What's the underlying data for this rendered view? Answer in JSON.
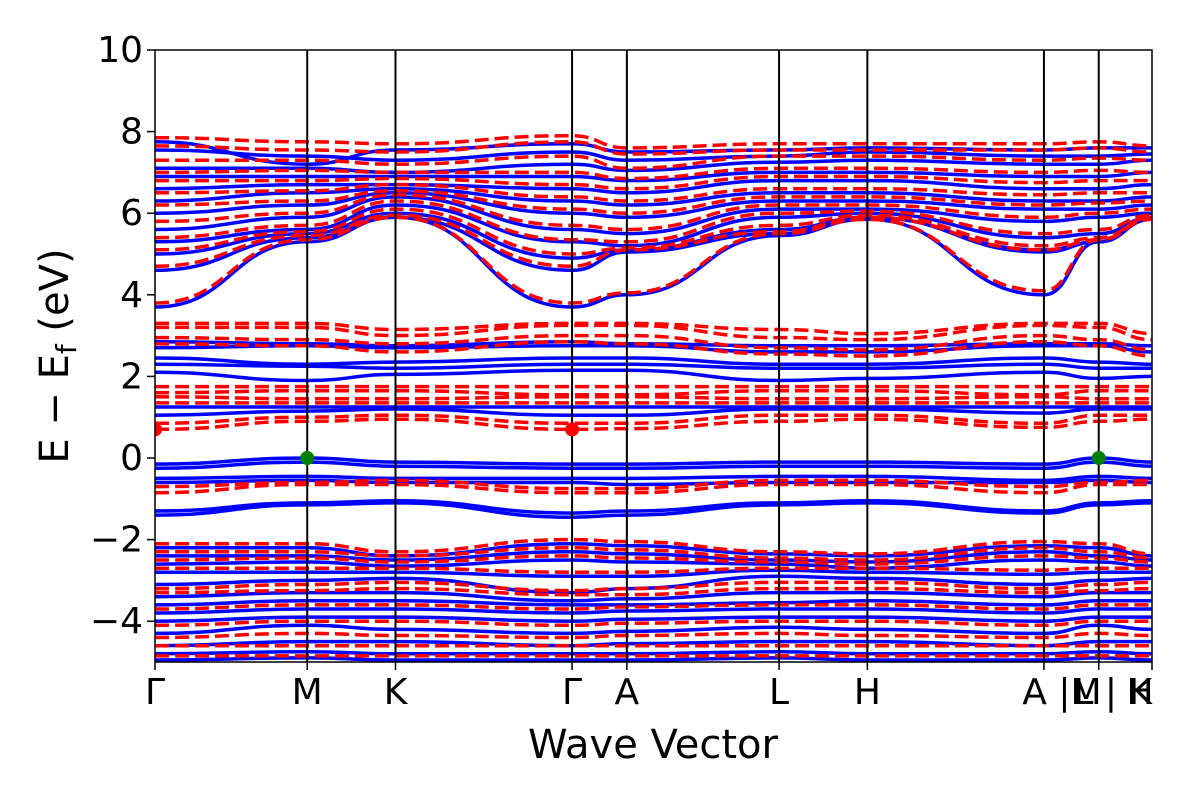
{
  "chart_data": {
    "type": "line",
    "xlabel": "Wave Vector",
    "ylabel": "E − E",
    "ylabel_sub": "f",
    "ylabel_unit": " (eV)",
    "ylim": [
      -5,
      10
    ],
    "yticks": [
      10,
      8,
      6,
      4,
      2,
      0,
      -2,
      -4
    ],
    "ytick_labels": [
      "10",
      "8",
      "6",
      "4",
      "2",
      "0",
      "−2",
      "−4"
    ],
    "xlim": [
      0,
      6.55
    ],
    "kpoints": [
      {
        "label": "Γ",
        "x": 0.0
      },
      {
        "label": "M",
        "x": 1.0
      },
      {
        "label": "K",
        "x": 1.58
      },
      {
        "label": "Γ",
        "x": 2.74
      },
      {
        "label": "A",
        "x": 3.1
      },
      {
        "label": "L",
        "x": 4.1
      },
      {
        "label": "H",
        "x": 4.68
      },
      {
        "label": "A |M",
        "x": 5.84
      },
      {
        "label": "L | K",
        "x": 6.2
      },
      {
        "label": "H",
        "x": 6.55
      }
    ],
    "colors": {
      "spin_up": "#0000ff",
      "spin_down": "#ff0000",
      "vbm": "#008000",
      "cbm": "#ff0000"
    },
    "series": [
      {
        "style": "solid",
        "color": "#0000ff",
        "bands": [
          [
            7.75,
            7.2,
            7.55,
            7.7,
            7.5,
            7.55,
            7.6,
            7.55,
            7.6,
            7.6
          ],
          [
            7.55,
            7.4,
            7.3,
            7.5,
            7.3,
            7.4,
            7.5,
            7.4,
            7.4,
            7.45
          ],
          [
            7.1,
            7.1,
            7.0,
            7.2,
            7.05,
            7.25,
            7.3,
            7.2,
            7.2,
            7.3
          ],
          [
            6.9,
            6.9,
            6.9,
            6.9,
            6.8,
            7.0,
            7.0,
            6.9,
            6.9,
            7.0
          ],
          [
            6.6,
            6.7,
            6.7,
            6.6,
            6.5,
            6.8,
            6.8,
            6.6,
            6.6,
            6.7
          ],
          [
            6.3,
            6.5,
            6.6,
            6.3,
            6.2,
            6.5,
            6.5,
            6.3,
            6.3,
            6.4
          ],
          [
            6.0,
            6.2,
            6.5,
            6.0,
            5.9,
            6.3,
            6.3,
            6.1,
            6.1,
            6.2
          ],
          [
            5.6,
            5.9,
            6.4,
            5.6,
            5.5,
            6.1,
            6.1,
            5.8,
            5.9,
            6.0
          ],
          [
            5.3,
            5.6,
            6.2,
            5.3,
            5.2,
            5.9,
            6.0,
            5.4,
            5.5,
            5.9
          ],
          [
            5.0,
            5.5,
            6.0,
            4.9,
            5.1,
            5.6,
            5.9,
            5.1,
            5.3,
            5.9
          ],
          [
            4.6,
            5.4,
            5.9,
            4.6,
            5.05,
            5.5,
            5.9,
            5.05,
            5.3,
            5.9
          ],
          [
            3.7,
            5.3,
            5.9,
            3.7,
            4.0,
            5.45,
            5.85,
            4.0,
            5.3,
            5.85
          ],
          [
            2.85,
            2.8,
            2.75,
            2.85,
            2.8,
            2.75,
            2.75,
            2.8,
            2.8,
            2.75
          ],
          [
            2.7,
            2.75,
            2.7,
            2.75,
            2.75,
            2.6,
            2.6,
            2.75,
            2.75,
            2.6
          ],
          [
            2.45,
            2.3,
            2.35,
            2.45,
            2.45,
            2.3,
            2.3,
            2.45,
            2.35,
            2.3
          ],
          [
            2.3,
            2.25,
            2.2,
            2.3,
            2.3,
            2.2,
            2.2,
            2.3,
            2.2,
            2.2
          ],
          [
            2.1,
            1.9,
            2.05,
            2.15,
            2.15,
            1.9,
            1.95,
            2.1,
            1.95,
            2.0
          ],
          [
            1.25,
            1.25,
            1.25,
            1.25,
            1.25,
            1.25,
            1.25,
            1.25,
            1.25,
            1.25
          ],
          [
            1.05,
            1.15,
            1.2,
            1.05,
            1.05,
            1.2,
            1.2,
            1.1,
            1.2,
            1.2
          ],
          [
            -0.15,
            0.0,
            -0.1,
            -0.15,
            -0.15,
            -0.1,
            -0.1,
            -0.15,
            0.0,
            -0.1
          ],
          [
            -0.25,
            -0.1,
            -0.2,
            -0.25,
            -0.25,
            -0.2,
            -0.2,
            -0.25,
            -0.1,
            -0.2
          ],
          [
            -0.5,
            -0.45,
            -0.5,
            -0.5,
            -0.5,
            -0.45,
            -0.45,
            -0.55,
            -0.45,
            -0.5
          ],
          [
            -0.6,
            -0.55,
            -0.6,
            -0.6,
            -0.65,
            -0.6,
            -0.6,
            -0.6,
            -0.55,
            -0.6
          ],
          [
            -1.3,
            -1.1,
            -1.05,
            -1.35,
            -1.3,
            -1.1,
            -1.05,
            -1.3,
            -1.1,
            -1.05
          ],
          [
            -1.4,
            -1.15,
            -1.1,
            -1.45,
            -1.4,
            -1.15,
            -1.1,
            -1.35,
            -1.15,
            -1.1
          ],
          [
            -2.2,
            -2.2,
            -2.4,
            -2.1,
            -2.15,
            -2.35,
            -2.4,
            -2.15,
            -2.2,
            -2.4
          ],
          [
            -2.4,
            -2.4,
            -2.5,
            -2.3,
            -2.35,
            -2.5,
            -2.55,
            -2.3,
            -2.4,
            -2.5
          ],
          [
            -2.6,
            -2.55,
            -2.65,
            -2.5,
            -2.55,
            -2.6,
            -2.7,
            -2.5,
            -2.55,
            -2.65
          ],
          [
            -2.8,
            -2.8,
            -2.8,
            -2.9,
            -2.9,
            -2.75,
            -2.8,
            -2.85,
            -2.8,
            -2.8
          ],
          [
            -3.1,
            -3.0,
            -2.95,
            -3.3,
            -3.2,
            -2.9,
            -2.95,
            -3.1,
            -3.0,
            -2.95
          ],
          [
            -3.4,
            -3.3,
            -3.3,
            -3.5,
            -3.45,
            -3.3,
            -3.3,
            -3.4,
            -3.3,
            -3.3
          ],
          [
            -3.6,
            -3.5,
            -3.5,
            -3.6,
            -3.6,
            -3.55,
            -3.5,
            -3.6,
            -3.5,
            -3.5
          ],
          [
            -3.8,
            -3.7,
            -3.7,
            -3.8,
            -3.75,
            -3.7,
            -3.7,
            -3.8,
            -3.7,
            -3.7
          ],
          [
            -4.0,
            -3.9,
            -3.9,
            -4.0,
            -3.95,
            -3.9,
            -3.9,
            -4.0,
            -3.9,
            -3.9
          ],
          [
            -4.3,
            -4.1,
            -4.2,
            -4.3,
            -4.25,
            -4.15,
            -4.2,
            -4.3,
            -4.1,
            -4.2
          ],
          [
            -4.6,
            -4.5,
            -4.5,
            -4.6,
            -4.55,
            -4.5,
            -4.5,
            -4.6,
            -4.5,
            -4.5
          ],
          [
            -4.8,
            -4.75,
            -4.8,
            -4.8,
            -4.8,
            -4.75,
            -4.8,
            -4.8,
            -4.75,
            -4.8
          ],
          [
            -4.95,
            -4.9,
            -4.95,
            -4.95,
            -4.95,
            -4.9,
            -4.95,
            -4.95,
            -4.9,
            -4.95
          ]
        ]
      },
      {
        "style": "dashed",
        "color": "#ff0000",
        "bands": [
          [
            7.85,
            7.75,
            7.7,
            7.9,
            7.6,
            7.7,
            7.7,
            7.7,
            7.75,
            7.65
          ],
          [
            7.65,
            7.55,
            7.5,
            7.75,
            7.45,
            7.55,
            7.55,
            7.55,
            7.6,
            7.5
          ],
          [
            7.3,
            7.3,
            7.2,
            7.4,
            7.1,
            7.4,
            7.4,
            7.3,
            7.35,
            7.3
          ],
          [
            7.0,
            7.05,
            7.0,
            7.0,
            6.85,
            7.1,
            7.1,
            7.0,
            7.05,
            7.0
          ],
          [
            6.8,
            6.8,
            6.85,
            6.7,
            6.6,
            6.9,
            6.9,
            6.75,
            6.8,
            6.8
          ],
          [
            6.5,
            6.55,
            6.7,
            6.4,
            6.3,
            6.6,
            6.6,
            6.45,
            6.5,
            6.5
          ],
          [
            6.2,
            6.3,
            6.55,
            6.1,
            6.0,
            6.4,
            6.4,
            6.2,
            6.25,
            6.3
          ],
          [
            5.8,
            6.0,
            6.45,
            5.7,
            5.6,
            6.2,
            6.2,
            5.9,
            6.0,
            6.1
          ],
          [
            5.4,
            5.7,
            6.3,
            5.35,
            5.3,
            6.0,
            6.05,
            5.5,
            5.6,
            5.95
          ],
          [
            5.1,
            5.55,
            6.1,
            5.0,
            5.15,
            5.7,
            5.95,
            5.2,
            5.4,
            5.9
          ],
          [
            4.7,
            5.45,
            5.95,
            4.7,
            5.1,
            5.55,
            5.9,
            5.1,
            5.35,
            5.9
          ],
          [
            3.8,
            5.35,
            5.9,
            3.8,
            4.05,
            5.5,
            5.85,
            4.1,
            5.35,
            5.85
          ],
          [
            3.3,
            3.3,
            3.15,
            3.3,
            3.3,
            3.15,
            3.05,
            3.3,
            3.3,
            3.05
          ],
          [
            3.2,
            3.2,
            3.0,
            3.25,
            3.25,
            2.95,
            2.9,
            3.25,
            3.2,
            2.9
          ],
          [
            2.95,
            2.9,
            2.8,
            3.0,
            3.0,
            2.7,
            2.65,
            3.0,
            2.9,
            2.65
          ],
          [
            2.8,
            2.75,
            2.6,
            2.85,
            2.8,
            2.55,
            2.5,
            2.85,
            2.75,
            2.5
          ],
          [
            1.75,
            1.75,
            1.75,
            1.75,
            1.75,
            1.75,
            1.75,
            1.75,
            1.75,
            1.75
          ],
          [
            1.6,
            1.65,
            1.65,
            1.55,
            1.55,
            1.65,
            1.65,
            1.55,
            1.65,
            1.65
          ],
          [
            1.5,
            1.45,
            1.45,
            1.5,
            1.5,
            1.45,
            1.45,
            1.5,
            1.45,
            1.45
          ],
          [
            1.35,
            1.35,
            1.35,
            1.35,
            1.35,
            1.35,
            1.35,
            1.35,
            1.35,
            1.35
          ],
          [
            0.85,
            1.0,
            1.05,
            0.85,
            0.85,
            1.05,
            1.05,
            0.85,
            1.05,
            1.05
          ],
          [
            0.7,
            0.9,
            0.95,
            0.7,
            0.72,
            0.9,
            0.95,
            0.75,
            0.9,
            0.95
          ],
          [
            -0.7,
            -0.6,
            -0.55,
            -0.75,
            -0.75,
            -0.55,
            -0.55,
            -0.7,
            -0.6,
            -0.55
          ],
          [
            -0.85,
            -0.65,
            -0.65,
            -0.85,
            -0.85,
            -0.65,
            -0.65,
            -0.85,
            -0.65,
            -0.65
          ],
          [
            -2.1,
            -2.1,
            -2.3,
            -2.0,
            -2.05,
            -2.3,
            -2.35,
            -2.05,
            -2.1,
            -2.35
          ],
          [
            -2.3,
            -2.3,
            -2.4,
            -2.2,
            -2.25,
            -2.45,
            -2.5,
            -2.2,
            -2.3,
            -2.45
          ],
          [
            -2.5,
            -2.45,
            -2.55,
            -2.4,
            -2.45,
            -2.55,
            -2.6,
            -2.4,
            -2.45,
            -2.55
          ],
          [
            -2.7,
            -2.7,
            -2.7,
            -2.8,
            -2.8,
            -2.7,
            -2.7,
            -2.75,
            -2.7,
            -2.7
          ],
          [
            -3.2,
            -3.1,
            -3.05,
            -3.25,
            -3.2,
            -3.05,
            -3.05,
            -3.2,
            -3.1,
            -3.05
          ],
          [
            -3.3,
            -3.25,
            -3.2,
            -3.35,
            -3.35,
            -3.2,
            -3.2,
            -3.3,
            -3.25,
            -3.2
          ],
          [
            -3.7,
            -3.6,
            -3.6,
            -3.7,
            -3.65,
            -3.6,
            -3.6,
            -3.7,
            -3.6,
            -3.6
          ],
          [
            -4.1,
            -4.0,
            -4.0,
            -4.1,
            -4.05,
            -4.0,
            -4.0,
            -4.1,
            -4.0,
            -4.0
          ],
          [
            -4.4,
            -4.3,
            -4.35,
            -4.4,
            -4.35,
            -4.3,
            -4.35,
            -4.4,
            -4.3,
            -4.35
          ],
          [
            -4.6,
            -4.6,
            -4.6,
            -4.6,
            -4.6,
            -4.6,
            -4.6,
            -4.6,
            -4.6,
            -4.6
          ],
          [
            -4.85,
            -4.85,
            -4.85,
            -4.85,
            -4.85,
            -4.85,
            -4.85,
            -4.85,
            -4.85,
            -4.85
          ]
        ]
      }
    ],
    "markers": [
      {
        "kind": "vbm",
        "color": "#008000",
        "x": 1.0,
        "y": 0.0
      },
      {
        "kind": "vbm",
        "color": "#008000",
        "x": 6.2,
        "y": 0.0
      },
      {
        "kind": "cbm",
        "color": "#ff0000",
        "x": 0.0,
        "y": 0.7
      },
      {
        "kind": "cbm",
        "color": "#ff0000",
        "x": 2.74,
        "y": 0.7
      }
    ],
    "grid": false
  }
}
